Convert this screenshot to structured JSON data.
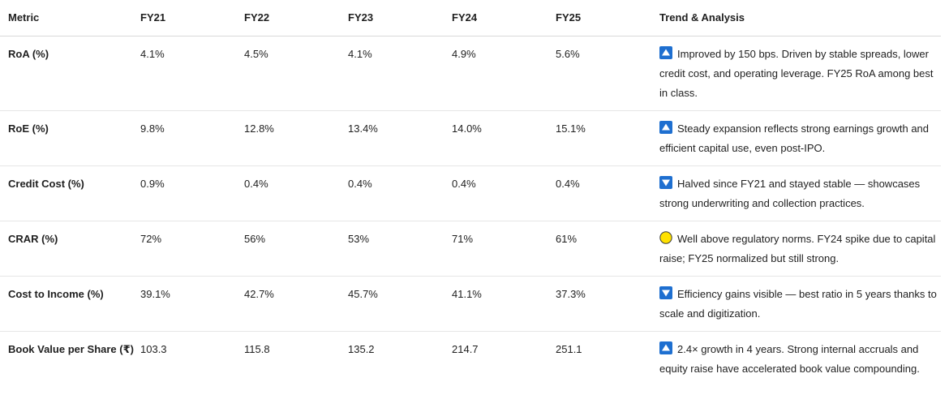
{
  "table": {
    "columns": [
      "Metric",
      "FY21",
      "FY22",
      "FY23",
      "FY24",
      "FY25",
      "Trend & Analysis"
    ],
    "rows": [
      {
        "metric": "RoA (%)",
        "values": [
          "4.1%",
          "4.5%",
          "4.1%",
          "4.9%",
          "5.6%"
        ],
        "trend_icon": "up-arrow-icon",
        "trend_text": "Improved by 150 bps. Driven by stable spreads, lower credit cost, and operating leverage. FY25 RoA among best in class."
      },
      {
        "metric": "RoE (%)",
        "values": [
          "9.8%",
          "12.8%",
          "13.4%",
          "14.0%",
          "15.1%"
        ],
        "trend_icon": "up-arrow-icon",
        "trend_text": "Steady expansion reflects strong earnings growth and efficient capital use, even post-IPO."
      },
      {
        "metric": "Credit Cost (%)",
        "values": [
          "0.9%",
          "0.4%",
          "0.4%",
          "0.4%",
          "0.4%"
        ],
        "trend_icon": "down-arrow-icon",
        "trend_text": "Halved since FY21 and stayed stable — showcases strong underwriting and collection practices."
      },
      {
        "metric": "CRAR (%)",
        "values": [
          "72%",
          "56%",
          "53%",
          "71%",
          "61%"
        ],
        "trend_icon": "yellow-circle-icon",
        "trend_text": "Well above regulatory norms. FY24 spike due to capital raise; FY25 normalized but still strong."
      },
      {
        "metric": "Cost to Income (%)",
        "values": [
          "39.1%",
          "42.7%",
          "45.7%",
          "41.1%",
          "37.3%"
        ],
        "trend_icon": "down-arrow-icon",
        "trend_text": "Efficiency gains visible — best ratio in 5 years thanks to scale and digitization."
      },
      {
        "metric": "Book Value per Share (₹)",
        "values": [
          "103.3",
          "115.8",
          "135.2",
          "214.7",
          "251.1"
        ],
        "trend_icon": "up-arrow-icon",
        "trend_text": "2.4× growth in 4 years. Strong internal accruals and equity raise have accelerated book value compounding."
      }
    ]
  },
  "colors": {
    "arrow_icon_bg": "#1e6fd0",
    "circle_icon_fill": "#ffe100",
    "circle_icon_stroke": "#3a3a3a"
  }
}
